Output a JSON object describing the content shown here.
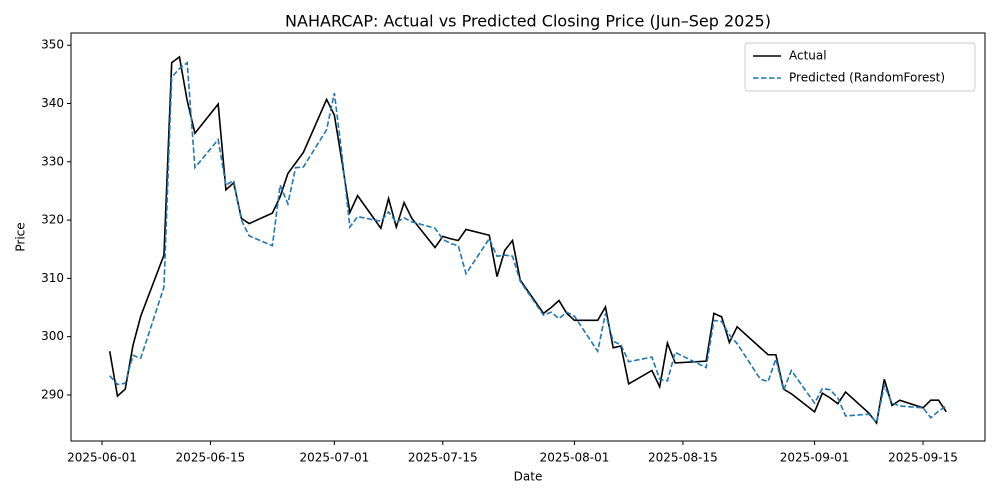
{
  "chart_data": {
    "type": "line",
    "title": "NAHARCAP: Actual vs Predicted Closing Price (Jun–Sep 2025)",
    "xlabel": "Date",
    "ylabel": "Price",
    "x": [
      "2025-06-02",
      "2025-06-03",
      "2025-06-04",
      "2025-06-05",
      "2025-06-06",
      "2025-06-09",
      "2025-06-10",
      "2025-06-11",
      "2025-06-12",
      "2025-06-13",
      "2025-06-16",
      "2025-06-17",
      "2025-06-18",
      "2025-06-19",
      "2025-06-20",
      "2025-06-23",
      "2025-06-24",
      "2025-06-25",
      "2025-06-26",
      "2025-06-27",
      "2025-06-30",
      "2025-07-01",
      "2025-07-02",
      "2025-07-03",
      "2025-07-04",
      "2025-07-07",
      "2025-07-08",
      "2025-07-09",
      "2025-07-10",
      "2025-07-11",
      "2025-07-14",
      "2025-07-15",
      "2025-07-16",
      "2025-07-17",
      "2025-07-18",
      "2025-07-21",
      "2025-07-22",
      "2025-07-23",
      "2025-07-24",
      "2025-07-25",
      "2025-07-28",
      "2025-07-29",
      "2025-07-30",
      "2025-07-31",
      "2025-08-01",
      "2025-08-04",
      "2025-08-05",
      "2025-08-06",
      "2025-08-07",
      "2025-08-08",
      "2025-08-11",
      "2025-08-12",
      "2025-08-13",
      "2025-08-14",
      "2025-08-18",
      "2025-08-19",
      "2025-08-20",
      "2025-08-21",
      "2025-08-22",
      "2025-08-25",
      "2025-08-26",
      "2025-08-27",
      "2025-08-28",
      "2025-08-29",
      "2025-09-01",
      "2025-09-02",
      "2025-09-03",
      "2025-09-04",
      "2025-09-05",
      "2025-09-08",
      "2025-09-09",
      "2025-09-10",
      "2025-09-11",
      "2025-09-12",
      "2025-09-15",
      "2025-09-16",
      "2025-09-17",
      "2025-09-18"
    ],
    "series": [
      {
        "name": "Actual",
        "color": "#000000",
        "dash": "solid",
        "values": [
          297.5,
          289.8,
          291,
          298.5,
          303.5,
          314,
          347,
          348,
          340.5,
          334.9,
          339.9,
          325.2,
          326.4,
          320.3,
          319.4,
          321.2,
          324,
          328,
          329.8,
          331.6,
          340.7,
          338,
          329.9,
          321.3,
          324.2,
          318.6,
          323.7,
          318.8,
          323,
          320.3,
          315.3,
          317.2,
          316.8,
          316.5,
          318.4,
          317.4,
          310.3,
          314.8,
          316.5,
          309.7,
          304,
          305,
          306.2,
          304,
          302.8,
          302.8,
          305.1,
          298.1,
          298.4,
          291.9,
          294.2,
          291.4,
          298.9,
          295.5,
          295.8,
          304,
          303.4,
          299,
          301.7,
          298.1,
          296.9,
          296.9,
          291,
          290.2,
          287.1,
          290.3,
          289.5,
          288.5,
          290.5,
          286.9,
          285.2,
          292.7,
          288.2,
          289.1,
          287.8,
          289.1,
          289.1,
          287.1
        ]
      },
      {
        "name": "Predicted (RandomForest)",
        "color": "#1f77b4",
        "dash": "dashed",
        "values": [
          293.3,
          291.8,
          292,
          296.8,
          296.3,
          308.5,
          344.5,
          346,
          347,
          329,
          333.8,
          326,
          326.8,
          320,
          317.3,
          315.6,
          326,
          322.8,
          329,
          329.1,
          335.5,
          341.8,
          331,
          318.8,
          320.6,
          319.8,
          321.4,
          319.6,
          320.4,
          319.7,
          318.6,
          316.7,
          316,
          315.6,
          310.8,
          316.8,
          313.8,
          314,
          313.8,
          309.5,
          303.7,
          304.2,
          303.1,
          304.2,
          303.5,
          297.5,
          304,
          299.2,
          298.6,
          295.7,
          296.5,
          292.7,
          292.4,
          297.3,
          294.7,
          302.8,
          302.6,
          300.3,
          298.8,
          292.7,
          292.3,
          296.2,
          290.8,
          294.2,
          288.6,
          291.1,
          290.9,
          289.5,
          286.4,
          286.7,
          285.3,
          291.6,
          288.6,
          288.1,
          287.8,
          286.1,
          287.2,
          288.1
        ]
      }
    ],
    "xlim": [
      "2025-05-28",
      "2025-09-23"
    ],
    "xticks": [
      "2025-06-01",
      "2025-06-15",
      "2025-07-01",
      "2025-07-15",
      "2025-08-01",
      "2025-08-15",
      "2025-09-01",
      "2025-09-15"
    ],
    "ylim": [
      282.1,
      352.1
    ],
    "yticks": [
      290,
      300,
      310,
      320,
      330,
      340,
      350
    ],
    "grid": false,
    "legend": "upper right"
  }
}
